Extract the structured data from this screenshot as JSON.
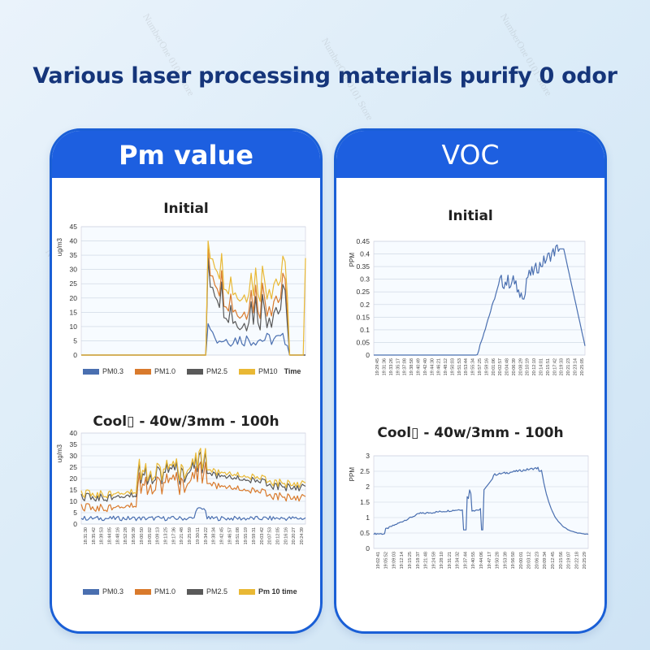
{
  "headline": "Various laser processing materials purify 0 odor",
  "watermark": "NumberOne 0101 Store",
  "colors": {
    "pm03": "#4a6fb0",
    "pm10": "#d97a2c",
    "pm25": "#595959",
    "pm10b": "#e9b834",
    "voc": "#4a6fb0",
    "header": "#1d5fe0"
  },
  "panels": {
    "pm": {
      "title": "Pm value"
    },
    "voc": {
      "title": "VOC"
    }
  },
  "chart_data": [
    {
      "type": "line",
      "title": "Initial",
      "ylabel": "ug/m3",
      "xlabel": "Time",
      "ylim": [
        0,
        45
      ],
      "yticks": [
        0,
        5,
        10,
        15,
        20,
        25,
        30,
        35,
        40,
        45
      ],
      "x": [
        0,
        1,
        2,
        3,
        4,
        5,
        6,
        7,
        8,
        9,
        10,
        11,
        12,
        13,
        14,
        15,
        16,
        17,
        18,
        19,
        20,
        21,
        22,
        23,
        24,
        25,
        26,
        27,
        28,
        29,
        30,
        31,
        32,
        33,
        34,
        35,
        36,
        37,
        38,
        39,
        40,
        41,
        42,
        43,
        44,
        45,
        46,
        47,
        48,
        49,
        50,
        51,
        52,
        53,
        54,
        55,
        56,
        57,
        58,
        59,
        60,
        61,
        62,
        63,
        64,
        65,
        66,
        67,
        68,
        69,
        70,
        71,
        72,
        73,
        74,
        75,
        76,
        77,
        78,
        79,
        80,
        81,
        82,
        83,
        84,
        85,
        86,
        87,
        88,
        89,
        90,
        91,
        92,
        93,
        94,
        95,
        96,
        97,
        98,
        99
      ],
      "series": [
        {
          "name": "PM0.3",
          "values": [
            0,
            0,
            0,
            0,
            0,
            0,
            0,
            0,
            0,
            0,
            0,
            0,
            0,
            0,
            0,
            0,
            0,
            0,
            0,
            0,
            0,
            0,
            0,
            0,
            0,
            0,
            0,
            0,
            0,
            0,
            0,
            0,
            0,
            0,
            0,
            0,
            0,
            0,
            0,
            0,
            0,
            0,
            0,
            0,
            0,
            0,
            0,
            0,
            0,
            0,
            0,
            0,
            0,
            0,
            0,
            0,
            0,
            0,
            0,
            0,
            0,
            0,
            0,
            0,
            0,
            0,
            0,
            0,
            0,
            0,
            0,
            0,
            0,
            0,
            0,
            0,
            0,
            0,
            0,
            0,
            0,
            0,
            0,
            0,
            0,
            0,
            0,
            0,
            0,
            0,
            0,
            0,
            0,
            0,
            0,
            0,
            0,
            0,
            0,
            0
          ]
        },
        {
          "name": "PM1.0",
          "values": [
            0,
            0,
            0,
            0,
            0,
            0,
            0,
            0,
            0,
            0,
            0,
            0,
            0,
            0,
            0,
            0,
            0,
            0,
            0,
            0,
            0,
            0,
            0,
            0,
            0,
            0,
            0,
            0,
            0,
            0,
            0,
            0,
            0,
            0,
            0,
            0,
            0,
            0,
            0,
            0,
            0,
            0,
            0,
            0,
            0,
            0,
            0,
            0,
            0,
            0,
            0,
            0,
            0,
            0,
            0,
            0,
            0,
            0,
            0,
            0,
            0,
            0,
            0,
            0,
            0,
            0,
            0,
            0,
            0,
            0,
            0,
            0,
            0,
            0,
            0,
            0,
            0,
            0,
            0,
            0,
            0,
            0,
            0,
            0,
            0,
            0,
            0,
            0,
            0,
            0,
            0,
            0,
            0,
            0,
            0,
            0,
            0,
            0,
            0,
            0
          ]
        },
        {
          "name": "PM2.5",
          "values": [
            0,
            0,
            0,
            0,
            0,
            0,
            0,
            0,
            0,
            0,
            0,
            0,
            0,
            0,
            0,
            0,
            0,
            0,
            0,
            0,
            0,
            0,
            0,
            0,
            0,
            0,
            0,
            0,
            0,
            0,
            0,
            0,
            0,
            0,
            0,
            0,
            0,
            0,
            0,
            0,
            0,
            0,
            0,
            0,
            0,
            0,
            0,
            0,
            0,
            0,
            0,
            0,
            0,
            0,
            0,
            0,
            0,
            0,
            0,
            0,
            0,
            0,
            0,
            0,
            0,
            0,
            0,
            0,
            0,
            0,
            0,
            0,
            0,
            0,
            0,
            0,
            0,
            0,
            0,
            0,
            0,
            0,
            0,
            0,
            0,
            0,
            0,
            0,
            0,
            0,
            0,
            0,
            0,
            0,
            0,
            0,
            0,
            0,
            0,
            0
          ]
        },
        {
          "name": "PM10",
          "values": [
            0,
            0,
            0,
            0,
            0,
            0,
            0,
            0,
            0,
            0,
            0,
            0,
            0,
            0,
            0,
            0,
            0,
            0,
            0,
            0,
            0,
            0,
            0,
            0,
            0,
            0,
            0,
            0,
            0,
            0,
            0,
            0,
            0,
            0,
            0,
            0,
            0,
            0,
            0,
            0,
            0,
            0,
            0,
            0,
            0,
            0,
            0,
            0,
            0,
            0,
            0,
            0,
            0,
            0,
            0,
            0,
            0,
            0,
            0,
            0,
            0,
            0,
            0,
            0,
            0,
            0,
            0,
            0,
            0,
            0,
            0,
            0,
            0,
            0,
            0,
            0,
            0,
            0,
            0,
            0,
            0,
            0,
            0,
            0,
            0,
            0,
            0,
            0,
            0,
            0,
            0,
            0,
            0,
            0,
            0,
            0,
            0,
            0,
            0,
            0
          ]
        }
      ]
    },
    {
      "type": "line",
      "title": "Cool\u0000 - 40w/3mm - 100h",
      "ylabel": "ug/m3",
      "ylim": [
        0,
        40
      ],
      "yticks": [
        0,
        5,
        10,
        15,
        20,
        25,
        30,
        35,
        40
      ],
      "xticks": [
        "18:31:30",
        "18:35:42",
        "18:39:53",
        "18:44:05",
        "18:48:16",
        "18:52:28",
        "18:56:39",
        "19:00:50",
        "19:05:02",
        "19:09:13",
        "19:13:25",
        "19:17:36",
        "19:21:48",
        "19:25:59",
        "19:30:11",
        "19:34:22",
        "19:38:34",
        "19:42:45",
        "19:46:57",
        "19:51:08",
        "19:55:19",
        "19:59:31",
        "20:03:42",
        "20:07:53",
        "20:12:05",
        "20:16:16",
        "20:20:27",
        "20:24:39"
      ],
      "legend_extra": "Pm 10 time",
      "series": [
        {
          "name": "PM0.3",
          "values": []
        },
        {
          "name": "PM1.0",
          "values": []
        },
        {
          "name": "PM2.5",
          "values": []
        },
        {
          "name": "PM10",
          "values": []
        }
      ]
    },
    {
      "type": "line",
      "title": "Initial",
      "ylabel": "PPM",
      "ylim": [
        0,
        0.45
      ],
      "yticks": [
        "0",
        "0.05",
        "0.1",
        "0.15",
        "0.2",
        "0.25",
        "0.3",
        "0.35",
        "0.4",
        "0.45"
      ],
      "xticks": [
        "19:29:45",
        "19:31:36",
        "19:33:26",
        "19:35:17",
        "19:37:08",
        "19:38:58",
        "19:40:49",
        "19:42:40",
        "19:44:30",
        "19:46:21",
        "19:48:12",
        "19:50:03",
        "19:51:53",
        "19:53:44",
        "19:55:34",
        "19:57:25",
        "19:59:16",
        "20:01:06",
        "20:02:57",
        "20:04:48",
        "20:06:39",
        "20:08:29",
        "20:10:19",
        "20:12:10",
        "20:14:01",
        "20:15:51",
        "20:17:42",
        "20:19:33",
        "20:21:23",
        "20:23:14",
        "20:25:05"
      ],
      "series": [
        {
          "values": []
        }
      ]
    },
    {
      "type": "line",
      "title": "Cool\u0000 - 40w/3mm - 100h",
      "ylabel": "PPM",
      "ylim": [
        0,
        3
      ],
      "yticks": [
        "0",
        "0.5",
        "1",
        "1.5",
        "2",
        "2.5",
        "3"
      ],
      "xticks": [
        "19:02:41",
        "19:05:52",
        "19:09:03",
        "19:12:14",
        "19:15:25",
        "19:18:37",
        "19:21:48",
        "19:24:59",
        "19:28:10",
        "19:31:21",
        "19:34:32",
        "19:37:44",
        "19:40:55",
        "19:44:06",
        "19:47:17",
        "19:50:28",
        "19:53:39",
        "19:56:50",
        "20:00:01",
        "20:03:12",
        "20:06:23",
        "20:09:34",
        "20:12:45",
        "20:15:56",
        "20:19:07",
        "20:22:18",
        "20:25:29"
      ],
      "series": [
        {
          "values": []
        }
      ]
    }
  ],
  "legend_time_label": "Time"
}
